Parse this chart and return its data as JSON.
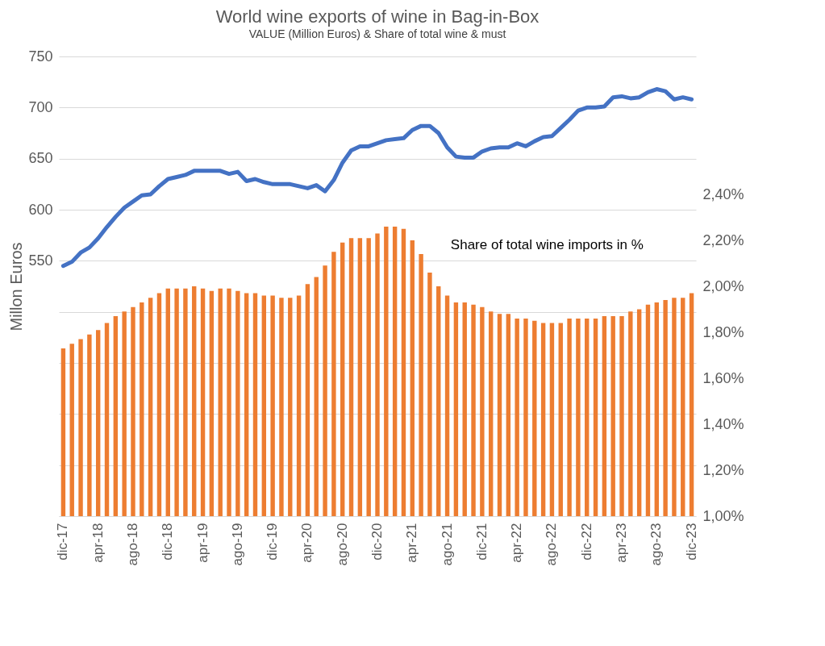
{
  "chart_data": {
    "type": "bar",
    "title": "World wine exports of wine in Bag-in-Box",
    "subtitle": "VALUE (Million Euros) & Share of total wine & must",
    "ylabel": "Millon Euros",
    "categories": [
      "dic-17",
      null,
      null,
      null,
      "apr-18",
      null,
      null,
      null,
      "ago-18",
      null,
      null,
      null,
      "dic-18",
      null,
      null,
      null,
      "apr-19",
      null,
      null,
      null,
      "ago-19",
      null,
      null,
      null,
      "dic-19",
      null,
      null,
      null,
      "apr-20",
      null,
      null,
      null,
      "ago-20",
      null,
      null,
      null,
      "dic-20",
      null,
      null,
      null,
      "apr-21",
      null,
      null,
      null,
      "ago-21",
      null,
      null,
      null,
      "dic-21",
      null,
      null,
      null,
      "apr-22",
      null,
      null,
      null,
      "ago-22",
      null,
      null,
      null,
      "dic-22",
      null,
      null,
      null,
      "apr-23",
      null,
      null,
      null,
      "ago-23",
      null,
      null,
      null,
      "dic-23"
    ],
    "series": [
      {
        "type": "line",
        "color": "#4472c4",
        "values": [
          545,
          549,
          558,
          563,
          572,
          583,
          593,
          602,
          608,
          614,
          615,
          623,
          630,
          632,
          634,
          638,
          638,
          638,
          638,
          635,
          637,
          628,
          630,
          627,
          625,
          625,
          625,
          623,
          621,
          624,
          618,
          629,
          646,
          658,
          662,
          662,
          665,
          668,
          669,
          670,
          678,
          682,
          682,
          675,
          661,
          652,
          651,
          651,
          657,
          660,
          661,
          661,
          665,
          662,
          667,
          671,
          672,
          680,
          688,
          697,
          700,
          700,
          701,
          710,
          711,
          709,
          710,
          715,
          718,
          716,
          708,
          710,
          708
        ]
      },
      {
        "axis": "y2",
        "color": "#ed7d31",
        "values": [
          1.73,
          1.75,
          1.77,
          1.79,
          1.81,
          1.84,
          1.87,
          1.89,
          1.91,
          1.93,
          1.95,
          1.97,
          1.99,
          1.99,
          1.99,
          2.0,
          1.99,
          1.98,
          1.99,
          1.99,
          1.98,
          1.97,
          1.97,
          1.96,
          1.96,
          1.95,
          1.95,
          1.96,
          2.01,
          2.04,
          2.09,
          2.15,
          2.19,
          2.21,
          2.21,
          2.21,
          2.23,
          2.26,
          2.26,
          2.25,
          2.2,
          2.14,
          2.06,
          2.0,
          1.96,
          1.93,
          1.93,
          1.92,
          1.91,
          1.89,
          1.88,
          1.88,
          1.86,
          1.86,
          1.85,
          1.84,
          1.84,
          1.84,
          1.86,
          1.86,
          1.86,
          1.86,
          1.87,
          1.87,
          1.87,
          1.89,
          1.9,
          1.92,
          1.93,
          1.94,
          1.95,
          1.95,
          1.97
        ]
      }
    ],
    "ylim": [
      300,
      750
    ],
    "yticks": [
      {
        "value": 300,
        "label": null
      },
      {
        "value": 350,
        "label": null
      },
      {
        "value": 400,
        "label": null
      },
      {
        "value": 450,
        "label": null
      },
      {
        "value": 500,
        "label": null
      },
      550,
      600,
      650,
      700,
      750
    ],
    "y2lim": [
      1.0,
      3.0
    ],
    "y2ticks": [
      {
        "value": 1.0,
        "label": "1,00%"
      },
      {
        "value": 1.2,
        "label": "1,20%"
      },
      {
        "value": 1.4,
        "label": "1,40%"
      },
      {
        "value": 1.6,
        "label": "1,60%"
      },
      {
        "value": 1.8,
        "label": "1,80%"
      },
      {
        "value": 2.0,
        "label": "2,00%"
      },
      {
        "value": 2.2,
        "label": "2,20%"
      },
      {
        "value": 2.4,
        "label": "2,40%"
      }
    ],
    "grid": "y",
    "legend": false,
    "annotations": [
      "Share of total wine imports in %"
    ]
  }
}
